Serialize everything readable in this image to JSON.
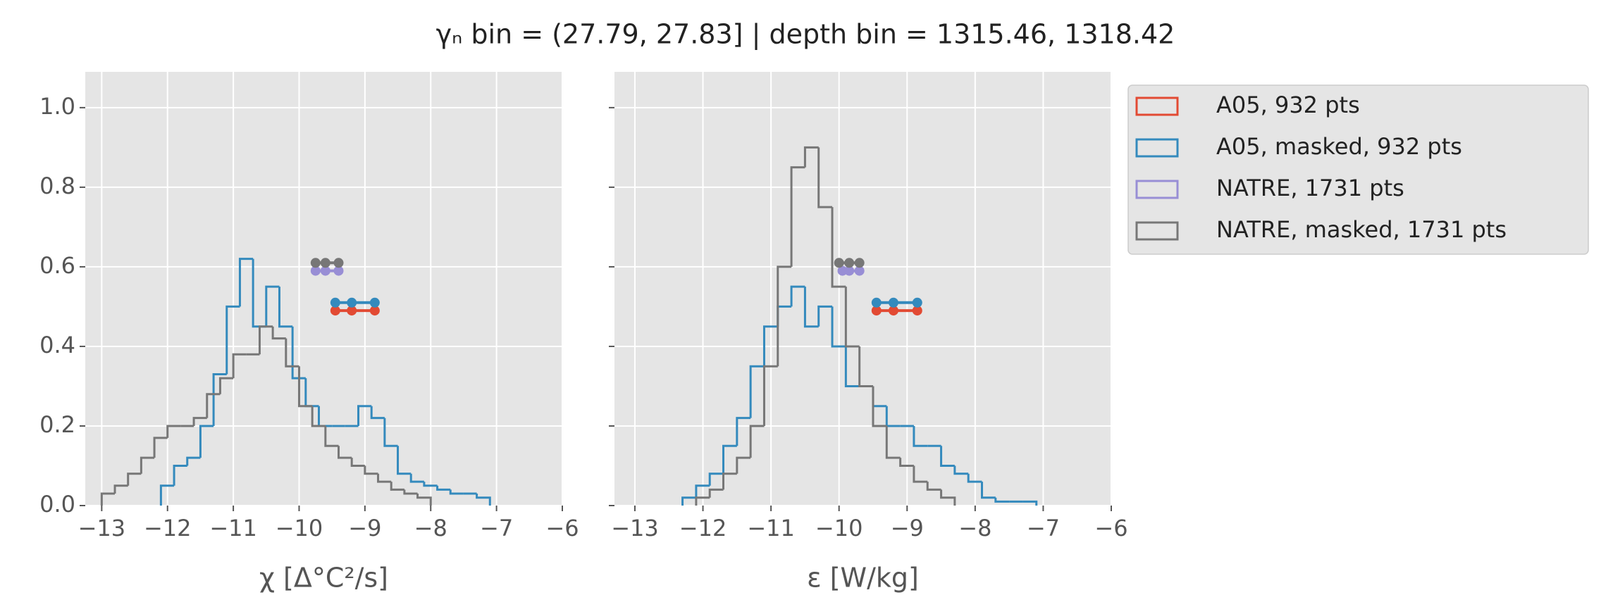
{
  "title": "γₙ bin = (27.79, 27.83] | depth bin = 1315.46, 1318.42",
  "chart_data": [
    {
      "type": "histogram",
      "xlabel": "χ [Δ°C²/s]",
      "xlim": [
        -13.25,
        -6
      ],
      "ylim": [
        0,
        1.09
      ],
      "grid": true,
      "xticks": [
        {
          "value": -13,
          "label": "−13"
        },
        {
          "value": -12,
          "label": "−12"
        },
        {
          "value": -11,
          "label": "−11"
        },
        {
          "value": -10,
          "label": "−10"
        },
        {
          "value": -9,
          "label": "−9"
        },
        {
          "value": -8,
          "label": "−8"
        },
        {
          "value": -7,
          "label": "−7"
        },
        {
          "value": -6,
          "label": "−6"
        }
      ],
      "yticks": [
        {
          "value": 0,
          "label": "0.0"
        },
        0.2,
        0.4,
        0.6,
        0.8,
        {
          "value": 1,
          "label": "1.0"
        }
      ],
      "series": [
        {
          "color": "#e24a33",
          "markers": {
            "x": [
              -9.45,
              -9.2,
              -8.85
            ],
            "y": 0.49
          }
        },
        {
          "color": "#348abd",
          "markers": {
            "x": [
              -9.45,
              -9.2,
              -8.85
            ],
            "y": 0.51
          },
          "bins": [
            -12.1,
            -11.9,
            -11.7,
            -11.5,
            -11.3,
            -11.1,
            -10.9,
            -10.7,
            -10.5,
            -10.3,
            -10.1,
            -9.9,
            -9.7,
            -9.5,
            -9.3,
            -9.1,
            -8.9,
            -8.7,
            -8.5,
            -8.3,
            -8.1,
            -7.9,
            -7.7,
            -7.5,
            -7.3,
            -7.1
          ],
          "values": [
            0.05,
            0.1,
            0.12,
            0.2,
            0.33,
            0.5,
            0.62,
            0.45,
            0.55,
            0.45,
            0.32,
            0.25,
            0.2,
            0.2,
            0.2,
            0.25,
            0.22,
            0.15,
            0.08,
            0.06,
            0.05,
            0.04,
            0.03,
            0.03,
            0.02
          ]
        },
        {
          "color": "#988ed5",
          "markers": {
            "x": [
              -9.75,
              -9.6,
              -9.4
            ],
            "y": 0.59
          }
        },
        {
          "color": "#777777",
          "markers": {
            "x": [
              -9.75,
              -9.6,
              -9.4
            ],
            "y": 0.61
          },
          "bins": [
            -13,
            -12.8,
            -12.6,
            -12.4,
            -12.2,
            -12,
            -11.8,
            -11.6,
            -11.4,
            -11.2,
            -11,
            -10.8,
            -10.6,
            -10.4,
            -10.2,
            -10,
            -9.8,
            -9.6,
            -9.4,
            -9.2,
            -9,
            -8.8,
            -8.6,
            -8.4,
            -8.2,
            -8
          ],
          "values": [
            0.03,
            0.05,
            0.08,
            0.12,
            0.17,
            0.2,
            0.2,
            0.22,
            0.28,
            0.32,
            0.38,
            0.38,
            0.45,
            0.42,
            0.35,
            0.25,
            0.2,
            0.15,
            0.12,
            0.1,
            0.08,
            0.06,
            0.04,
            0.03,
            0.02
          ]
        }
      ]
    },
    {
      "type": "histogram",
      "xlabel": "ε [W/kg]",
      "xlim": [
        -13.3,
        -6
      ],
      "ylim": [
        0,
        1.09
      ],
      "grid": true,
      "xticks": [
        {
          "value": -13,
          "label": "−13"
        },
        {
          "value": -12,
          "label": "−12"
        },
        {
          "value": -11,
          "label": "−11"
        },
        {
          "value": -10,
          "label": "−10"
        },
        {
          "value": -9,
          "label": "−9"
        },
        {
          "value": -8,
          "label": "−8"
        },
        {
          "value": -7,
          "label": "−7"
        },
        {
          "value": -6,
          "label": "−6"
        }
      ],
      "yticks": [
        0,
        0.2,
        0.4,
        0.6,
        0.8,
        1
      ],
      "series": [
        {
          "name": "A05, 932 pts",
          "color": "#e24a33",
          "markers": {
            "x": [
              -9.45,
              -9.2,
              -8.85
            ],
            "y": 0.49
          }
        },
        {
          "name": "A05, masked,  932 pts",
          "color": "#348abd",
          "markers": {
            "x": [
              -9.45,
              -9.2,
              -8.85
            ],
            "y": 0.51
          },
          "bins": [
            -12.3,
            -12.1,
            -11.9,
            -11.7,
            -11.5,
            -11.3,
            -11.1,
            -10.9,
            -10.7,
            -10.5,
            -10.3,
            -10.1,
            -9.9,
            -9.7,
            -9.5,
            -9.3,
            -9.1,
            -8.9,
            -8.7,
            -8.5,
            -8.3,
            -8.1,
            -7.9,
            -7.7,
            -7.5,
            -7.3,
            -7.1
          ],
          "values": [
            0.02,
            0.05,
            0.08,
            0.15,
            0.22,
            0.35,
            0.45,
            0.5,
            0.55,
            0.45,
            0.5,
            0.4,
            0.3,
            0.3,
            0.25,
            0.2,
            0.2,
            0.15,
            0.15,
            0.1,
            0.08,
            0.06,
            0.02,
            0.01,
            0.01,
            0.01
          ]
        },
        {
          "name": "NATRE, 1731 pts",
          "color": "#988ed5",
          "markers": {
            "x": [
              -9.95,
              -9.85,
              -9.7
            ],
            "y": 0.59
          }
        },
        {
          "name": "NATRE, masked,  1731 pts",
          "color": "#777777",
          "markers": {
            "x": [
              -10,
              -9.85,
              -9.7
            ],
            "y": 0.61
          },
          "bins": [
            -12.1,
            -11.9,
            -11.7,
            -11.5,
            -11.3,
            -11.1,
            -10.9,
            -10.7,
            -10.5,
            -10.3,
            -10.1,
            -9.9,
            -9.7,
            -9.5,
            -9.3,
            -9.1,
            -8.9,
            -8.7,
            -8.5,
            -8.3
          ],
          "values": [
            0.02,
            0.04,
            0.08,
            0.12,
            0.2,
            0.35,
            0.6,
            0.85,
            0.9,
            0.75,
            0.55,
            0.4,
            0.3,
            0.2,
            0.12,
            0.1,
            0.06,
            0.04,
            0.02
          ]
        }
      ]
    }
  ]
}
